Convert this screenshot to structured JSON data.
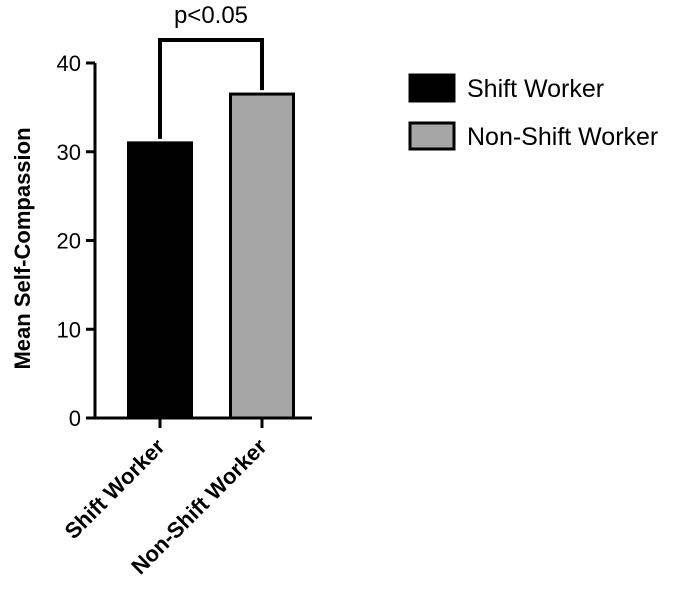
{
  "chart_data": {
    "type": "bar",
    "categories": [
      "Shift Worker",
      "Non-Shift Worker"
    ],
    "values": [
      31,
      36.5
    ],
    "colors": [
      "#000000",
      "#a6a6a6"
    ],
    "ylabel": "Mean Self-Compassion",
    "xlabel": "",
    "ylim": [
      0,
      40
    ],
    "yticks": [
      0,
      10,
      20,
      30,
      40
    ],
    "legend": {
      "placement": "top-right",
      "entries": [
        "Shift Worker",
        "Non-Shift Worker"
      ]
    },
    "annotations": [
      {
        "text": "p<0.05",
        "between": [
          "Shift Worker",
          "Non-Shift Worker"
        ]
      }
    ],
    "grid": false
  }
}
